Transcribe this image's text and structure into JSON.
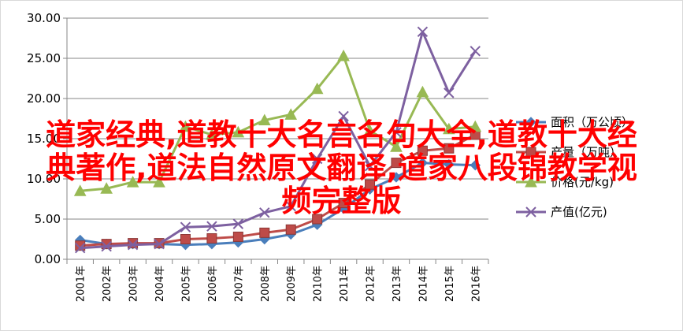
{
  "chart_data": {
    "type": "line",
    "categories": [
      "2001年",
      "2002年",
      "2003年",
      "2004年",
      "2005年",
      "2006年",
      "2007年",
      "2008年",
      "2009年",
      "2010年",
      "2011年",
      "2012年",
      "2013年",
      "2014年",
      "2015年",
      "2016年"
    ],
    "ylim": [
      0,
      30
    ],
    "y_ticks": [
      "0.00",
      "5.00",
      "10.00",
      "15.00",
      "20.00",
      "25.00",
      "30.00"
    ],
    "legend_position": "right",
    "grid": "horizontal",
    "series": [
      {
        "name": "面积（万公顷）",
        "color": "#4a7ebb",
        "marker": "diamond",
        "values": [
          2.4,
          1.9,
          1.9,
          1.9,
          1.8,
          1.9,
          2.1,
          2.5,
          3.1,
          4.3,
          6.3,
          8.7,
          10.2,
          12.0,
          11.8,
          11.7
        ]
      },
      {
        "name": "产量（万吨）",
        "color": "#be4b48",
        "marker": "square",
        "values": [
          1.7,
          1.9,
          2.0,
          2.0,
          2.5,
          2.6,
          2.8,
          3.3,
          3.7,
          5.0,
          7.0,
          9.3,
          12.0,
          13.5,
          13.8,
          15.5
        ]
      },
      {
        "name": "价格(元/kg)",
        "color": "#98b954",
        "marker": "triangle",
        "values": [
          8.5,
          8.8,
          9.6,
          9.6,
          16.5,
          15.5,
          15.8,
          17.3,
          18.0,
          21.2,
          25.3,
          16.0,
          14.0,
          20.8,
          16.2,
          16.5
        ]
      },
      {
        "name": "产值(亿元)",
        "color": "#7d60a0",
        "marker": "x",
        "values": [
          1.4,
          1.6,
          1.8,
          1.9,
          4.0,
          4.1,
          4.4,
          5.8,
          6.6,
          12.5,
          17.8,
          11.6,
          15.8,
          28.3,
          20.7,
          25.9
        ]
      }
    ]
  },
  "overlay": {
    "line1": "道家经典,道教十大名言名句大全,道教十大经",
    "line2": "典著作,道法自然原文翻译,道家八段锦教学视",
    "line3": "频完整版"
  }
}
